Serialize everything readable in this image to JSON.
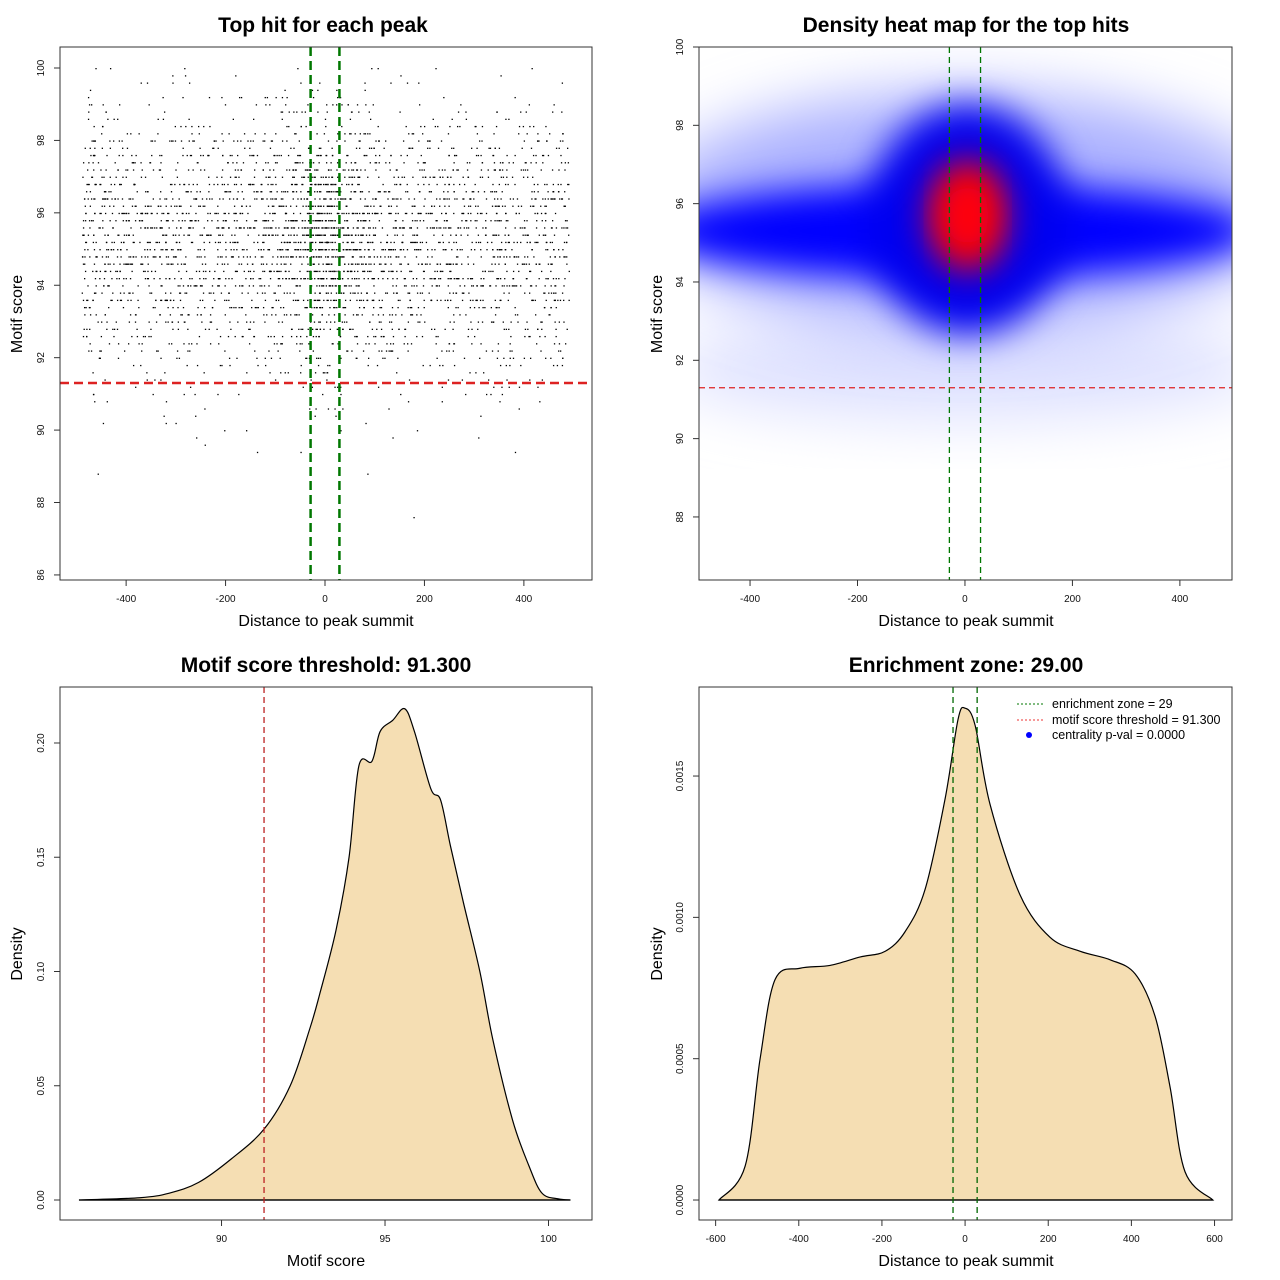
{
  "chart_data": [
    {
      "type": "scatter",
      "title": "Top hit for each peak",
      "xlabel": "Distance to peak summit",
      "ylabel": "Motif score",
      "xlim": [
        -533,
        537
      ],
      "ylim": [
        85.86,
        100.58
      ],
      "xticks": [
        -400,
        -200,
        0,
        200,
        400
      ],
      "yticks": [
        86,
        88,
        90,
        92,
        94,
        96,
        98,
        100
      ],
      "n_points_approx": 3500,
      "x_range": [
        -490,
        490
      ],
      "score_mean": 95.2,
      "score_sd": 1.9,
      "hlines": [
        {
          "y": 91.3,
          "color": "#dd2222"
        }
      ],
      "vlines": [
        {
          "x": -29,
          "color": "#007700"
        },
        {
          "x": 29,
          "color": "#007700"
        }
      ]
    },
    {
      "type": "heatmap",
      "title": "Density heat map for the top hits",
      "xlabel": "Distance to peak summit",
      "ylabel": "Motif score",
      "xlim": [
        -495,
        497
      ],
      "ylim": [
        86.39,
        100
      ],
      "xticks": [
        -400,
        -200,
        0,
        200,
        400
      ],
      "yticks": [
        88,
        90,
        92,
        94,
        96,
        98,
        100
      ],
      "peak": {
        "x": 5,
        "y": 95.7
      },
      "band_center_y": 95.3,
      "hlines": [
        {
          "y": 91.3,
          "color": "#dd2222"
        }
      ],
      "vlines": [
        {
          "x": -29,
          "color": "#007700"
        },
        {
          "x": 29,
          "color": "#007700"
        }
      ]
    },
    {
      "type": "area",
      "title": "Motif score threshold: 91.300",
      "xlabel": "Motif score",
      "ylabel": "Density",
      "xlim": [
        85.06,
        101.33
      ],
      "ylim": [
        -0.00875,
        0.2245
      ],
      "xticks": [
        90,
        95,
        100
      ],
      "yticks": [
        "0.00",
        "0.05",
        "0.10",
        "0.15",
        "0.20"
      ],
      "x": [
        85.64,
        87.5,
        88.4,
        89.3,
        90.3,
        91.3,
        92.1,
        92.7,
        93.0,
        93.5,
        93.9,
        94.2,
        94.6,
        94.85,
        95.24,
        95.6,
        95.9,
        96.4,
        96.7,
        97.0,
        97.4,
        97.9,
        98.3,
        98.9,
        99.4,
        99.8,
        100.3,
        100.67
      ],
      "y": [
        0,
        0.001,
        0.003,
        0.0077,
        0.018,
        0.031,
        0.05,
        0.075,
        0.09,
        0.118,
        0.15,
        0.19,
        0.192,
        0.205,
        0.21,
        0.215,
        0.205,
        0.18,
        0.175,
        0.155,
        0.13,
        0.1,
        0.07,
        0.035,
        0.015,
        0.003,
        0.0005,
        0
      ],
      "vlines": [
        {
          "x": 91.3,
          "color": "#bb2222"
        }
      ],
      "fill": "#f5deb3"
    },
    {
      "type": "area",
      "title": "Enrichment zone: 29.00",
      "xlabel": "Distance to peak summit",
      "ylabel": "Density",
      "xlim": [
        -640,
        642
      ],
      "ylim": [
        -7.07e-05,
        0.001815
      ],
      "xticks": [
        -600,
        -400,
        -200,
        0,
        200,
        400,
        600
      ],
      "yticks": [
        "0.0000",
        "0.0005",
        "0.0010",
        "0.0015"
      ],
      "x": [
        -592,
        -529,
        -493,
        -457,
        -397,
        -325,
        -252,
        -192,
        -144,
        -96,
        -48,
        -17,
        0,
        24,
        60,
        132,
        204,
        277,
        349,
        409,
        457,
        493,
        529,
        596
      ],
      "y": [
        0,
        0.00012,
        0.0005,
        0.00078,
        0.00082,
        0.00083,
        0.00086,
        0.00088,
        0.00095,
        0.0011,
        0.00142,
        0.0017,
        0.00174,
        0.00168,
        0.0014,
        0.00108,
        0.00093,
        0.00088,
        0.00085,
        0.0008,
        0.00065,
        0.0004,
        0.0001,
        0
      ],
      "vlines": [
        {
          "x": -29,
          "color": "#006600"
        },
        {
          "x": 29,
          "color": "#006600"
        }
      ],
      "fill": "#f5deb3",
      "legend": {
        "placement": "top-right",
        "entries": [
          {
            "label": "enrichment zone = 29",
            "color": "#007700",
            "style": "dotted"
          },
          {
            "label": "motif score threshold = 91.300",
            "color": "#ee3333",
            "style": "dotted"
          },
          {
            "label": "centrality p-val = 0.0000",
            "color": "#0000ff",
            "style": "point"
          }
        ]
      }
    }
  ]
}
